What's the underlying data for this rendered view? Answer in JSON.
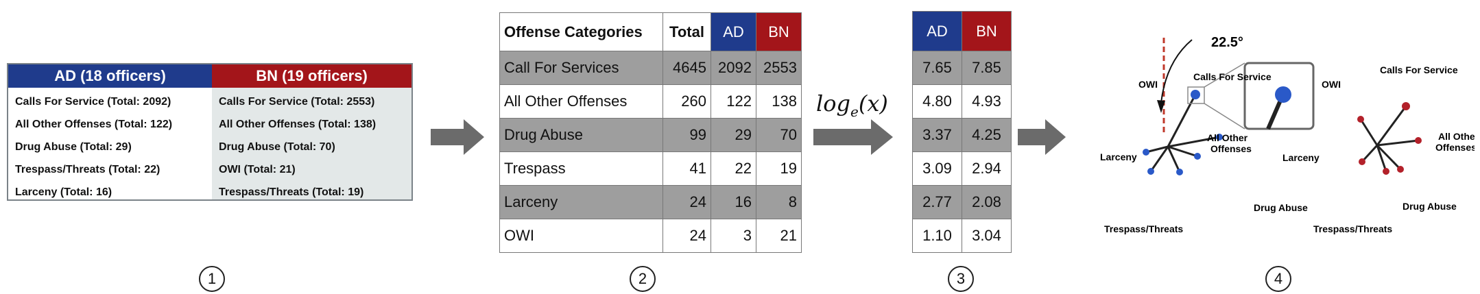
{
  "panel1": {
    "ad_header": "AD (18 officers)",
    "bn_header": "BN (19 officers)",
    "ad_rows": [
      "Calls For Service (Total: 2092)",
      "All Other Offenses (Total: 122)",
      "Drug Abuse (Total: 29)",
      "Trespass/Threats (Total: 22)",
      "Larceny (Total: 16)"
    ],
    "bn_rows": [
      "Calls For Service (Total: 2553)",
      "All Other Offenses (Total: 138)",
      "Drug Abuse (Total: 70)",
      "OWI (Total: 21)",
      "Trespass/Threats (Total: 19)"
    ]
  },
  "panel2": {
    "headers": [
      "Offense Categories",
      "Total",
      "AD",
      "BN"
    ],
    "rows": [
      [
        "Call For Services",
        "4645",
        "2092",
        "2553"
      ],
      [
        "All Other Offenses",
        "260",
        "122",
        "138"
      ],
      [
        "Drug Abuse",
        "99",
        "29",
        "70"
      ],
      [
        "Trespass",
        "41",
        "22",
        "19"
      ],
      [
        "Larceny",
        "24",
        "16",
        "8"
      ],
      [
        "OWI",
        "24",
        "3",
        "21"
      ]
    ]
  },
  "transform": {
    "base": "log",
    "subscript": "e",
    "arg": "(x)"
  },
  "panel3": {
    "headers": [
      "AD",
      "BN"
    ],
    "rows": [
      [
        "7.65",
        "7.85"
      ],
      [
        "4.80",
        "4.93"
      ],
      [
        "3.37",
        "4.25"
      ],
      [
        "3.09",
        "2.94"
      ],
      [
        "2.77",
        "2.08"
      ],
      [
        "1.10",
        "3.04"
      ]
    ]
  },
  "panel4": {
    "angle": "22.5°",
    "ad_labels": {
      "calls": "Calls For Service",
      "owi": "OWI",
      "other1": "All Other",
      "other2": "Offenses",
      "larceny": "Larceny",
      "drug": "Drug Abuse",
      "trespass": "Trespass/Threats"
    },
    "bn_labels": {
      "calls": "Calls For Service",
      "owi": "OWI",
      "other1": "All Other",
      "other2": "Offenses",
      "larceny": "Larceny",
      "drug": "Drug Abuse",
      "trespass": "Trespass/Threats"
    }
  },
  "steps": [
    "1",
    "2",
    "3",
    "4"
  ],
  "colors": {
    "ad": "#1f3b8c",
    "bn": "#a3151a",
    "arrow": "#6b6b6b",
    "shade": "#9e9e9e"
  }
}
